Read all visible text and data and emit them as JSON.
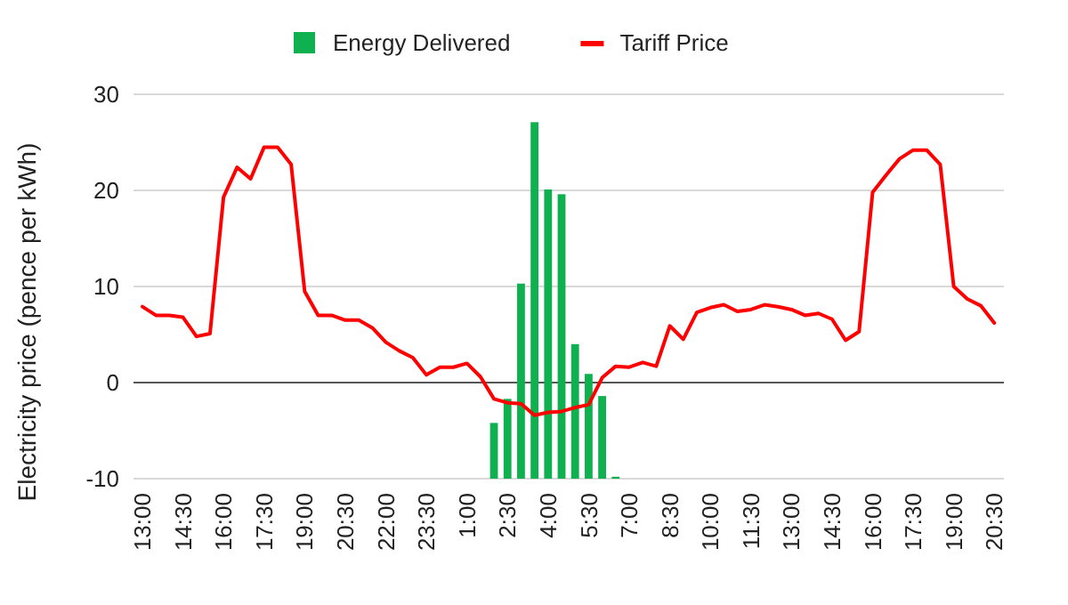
{
  "chart_data": {
    "type": "bar",
    "ylabel": "Electricity price (pence per kWh)",
    "categories": [
      "13:00",
      null,
      null,
      "14:30",
      null,
      null,
      "16:00",
      null,
      null,
      "17:30",
      null,
      null,
      "19:00",
      null,
      null,
      "20:30",
      null,
      null,
      "22:00",
      null,
      null,
      "23:30",
      null,
      null,
      "1:00",
      null,
      null,
      "2:30",
      null,
      null,
      "4:00",
      null,
      null,
      "5:30",
      null,
      null,
      "7:00",
      null,
      null,
      "8:30",
      null,
      null,
      "10:00",
      null,
      null,
      "11:30",
      null,
      null,
      "13:00",
      null,
      null,
      "14:30",
      null,
      null,
      "16:00",
      null,
      null,
      "17:30",
      null,
      null,
      "19:00",
      null,
      null,
      "20:30"
    ],
    "series": [
      {
        "name": "Energy Delivered",
        "color": "#0fb04f",
        "values": [
          null,
          null,
          null,
          null,
          null,
          null,
          null,
          null,
          null,
          null,
          null,
          null,
          null,
          null,
          null,
          null,
          null,
          null,
          null,
          null,
          null,
          null,
          null,
          null,
          null,
          null,
          5.8,
          8.3,
          20.3,
          37.1,
          30.1,
          29.6,
          14.0,
          10.9,
          8.6,
          0.2,
          null,
          null,
          null,
          null,
          null,
          null,
          null,
          null,
          null,
          null,
          null,
          null,
          null,
          null,
          null,
          null,
          null,
          null,
          null,
          null,
          null,
          null,
          null,
          null,
          null,
          null,
          null,
          null
        ],
        "base": [
          null,
          null,
          null,
          null,
          null,
          null,
          null,
          null,
          null,
          null,
          null,
          null,
          null,
          null,
          null,
          null,
          null,
          null,
          null,
          null,
          null,
          null,
          null,
          null,
          null,
          null,
          -10,
          -10,
          -10,
          -10,
          -10,
          -10,
          -10,
          -10,
          -10,
          -10,
          null,
          null,
          null,
          null,
          null,
          null,
          null,
          null,
          null,
          null,
          null,
          null,
          null,
          null,
          null,
          null,
          null,
          null,
          null,
          null,
          null,
          null,
          null,
          null,
          null,
          null,
          null,
          null
        ]
      },
      {
        "name": "Tariff Price",
        "type": "line",
        "color": "#ff0000",
        "values": [
          7.9,
          7.0,
          7.0,
          6.8,
          4.8,
          5.1,
          19.3,
          22.4,
          21.2,
          24.5,
          24.5,
          22.7,
          9.5,
          7.0,
          7.0,
          6.5,
          6.5,
          5.7,
          4.2,
          3.3,
          2.6,
          0.8,
          1.6,
          1.6,
          2.0,
          0.6,
          -1.7,
          -2.1,
          -2.2,
          -3.4,
          -3.1,
          -3.0,
          -2.6,
          -2.3,
          0.5,
          1.7,
          1.6,
          2.1,
          1.7,
          5.9,
          4.5,
          7.3,
          7.8,
          8.1,
          7.4,
          7.6,
          8.1,
          7.9,
          7.6,
          7.0,
          7.2,
          6.6,
          4.4,
          5.3,
          19.8,
          21.6,
          23.3,
          24.2,
          24.2,
          22.7,
          10.0,
          8.7,
          8.0,
          6.2
        ]
      }
    ],
    "ylim": [
      -10,
      30
    ],
    "yticks": [
      -10,
      0,
      10,
      20,
      30
    ],
    "grid": "y",
    "legend": "top",
    "marker": "none",
    "line_style": "solid"
  }
}
